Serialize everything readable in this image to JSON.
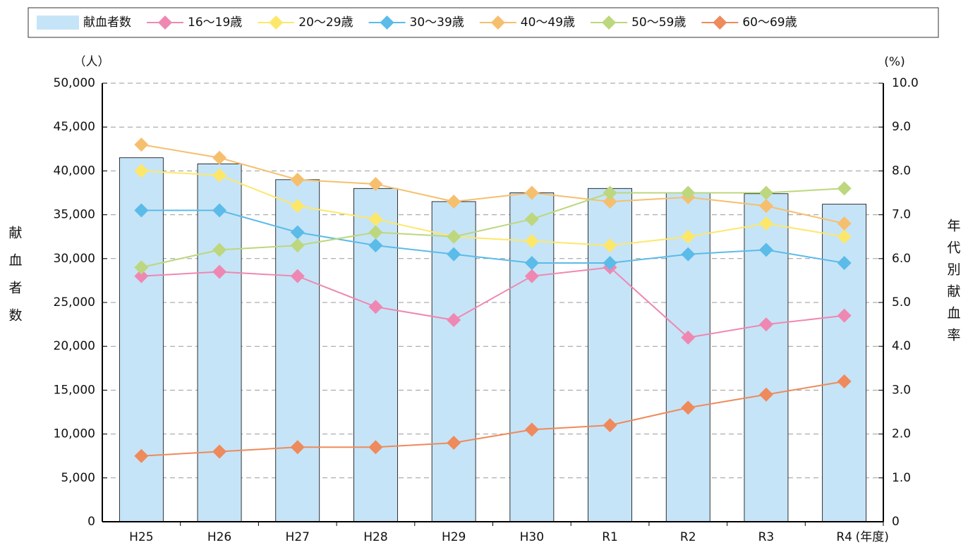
{
  "chart_data": {
    "type": "combo",
    "categories": [
      "H25",
      "H26",
      "H27",
      "H28",
      "H29",
      "H30",
      "R1",
      "R2",
      "R3",
      "R4"
    ],
    "x_annotation": "(年度)",
    "y_unit": "（人）",
    "y2_unit": "(%)",
    "ylabel": "献血者数",
    "y2label": "年代別献血率",
    "ylim": [
      0,
      50000
    ],
    "yticks": [
      0,
      {
        "value": 5000,
        "label": "5,000"
      },
      {
        "value": 10000,
        "label": "10,000"
      },
      {
        "value": 15000,
        "label": "15,000"
      },
      {
        "value": 20000,
        "label": "20,000"
      },
      {
        "value": 25000,
        "label": "25,000"
      },
      {
        "value": 30000,
        "label": "30,000"
      },
      {
        "value": 35000,
        "label": "35,000"
      },
      {
        "value": 40000,
        "label": "40,000"
      },
      {
        "value": 45000,
        "label": "45,000"
      },
      {
        "value": 50000,
        "label": "50,000"
      }
    ],
    "y2lim": [
      0,
      10
    ],
    "y2ticks": [
      0,
      {
        "value": 1,
        "label": "1.0"
      },
      {
        "value": 2,
        "label": "2.0"
      },
      {
        "value": 3,
        "label": "3.0"
      },
      {
        "value": 4,
        "label": "4.0"
      },
      {
        "value": 5,
        "label": "5.0"
      },
      {
        "value": 6,
        "label": "6.0"
      },
      {
        "value": 7,
        "label": "7.0"
      },
      {
        "value": 8,
        "label": "8.0"
      },
      {
        "value": 9,
        "label": "9.0"
      },
      {
        "value": 10,
        "label": "10.0"
      }
    ],
    "grid": true,
    "series": [
      {
        "name": "献血者数",
        "type": "bar",
        "color": "#c6e4f7",
        "values": [
          41500,
          40800,
          39000,
          38000,
          36500,
          37500,
          38000,
          37500,
          37400,
          36200
        ]
      },
      {
        "name": "16〜19歳",
        "type": "line",
        "axis": "y2",
        "color": "#ee88b2",
        "values": [
          5.6,
          5.7,
          5.6,
          4.9,
          4.6,
          5.6,
          5.8,
          4.2,
          4.5,
          4.7
        ]
      },
      {
        "name": "20〜29歳",
        "type": "line",
        "axis": "y2",
        "color": "#fde76a",
        "values": [
          8.0,
          7.9,
          7.2,
          6.9,
          6.5,
          6.4,
          6.3,
          6.5,
          6.8,
          6.5
        ]
      },
      {
        "name": "30〜39歳",
        "type": "line",
        "axis": "y2",
        "color": "#5bbbe9",
        "values": [
          7.1,
          7.1,
          6.6,
          6.3,
          6.1,
          5.9,
          5.9,
          6.1,
          6.2,
          5.9
        ]
      },
      {
        "name": "40〜49歳",
        "type": "line",
        "axis": "y2",
        "color": "#f6bf6e",
        "values": [
          8.6,
          8.3,
          7.8,
          7.7,
          7.3,
          7.5,
          7.3,
          7.4,
          7.2,
          6.8
        ]
      },
      {
        "name": "50〜59歳",
        "type": "line",
        "axis": "y2",
        "color": "#bcd77d",
        "values": [
          5.8,
          6.2,
          6.3,
          6.6,
          6.5,
          6.9,
          7.5,
          7.5,
          7.5,
          7.6
        ]
      },
      {
        "name": "60〜69歳",
        "type": "line",
        "axis": "y2",
        "color": "#ee8a5b",
        "values": [
          1.5,
          1.6,
          1.7,
          1.7,
          1.8,
          2.1,
          2.2,
          2.6,
          2.9,
          3.2
        ]
      }
    ]
  }
}
